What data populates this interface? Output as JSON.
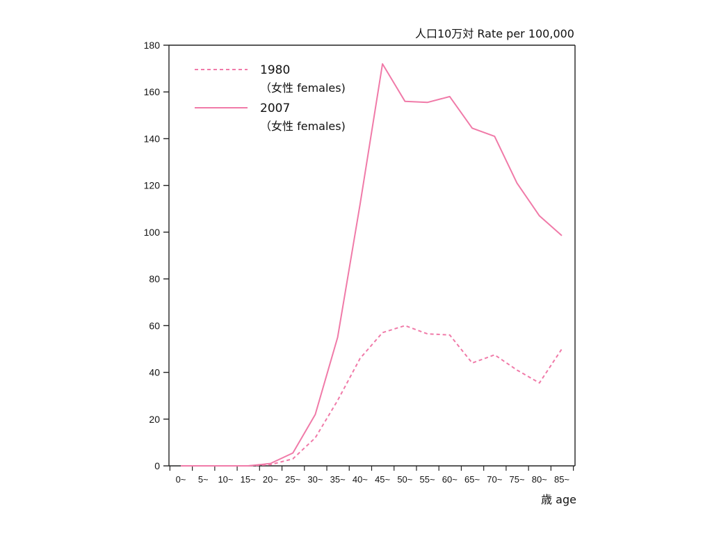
{
  "chart_data": {
    "type": "line",
    "y_unit_label": "人口10万対  Rate per 100,000",
    "x_unit_label": "歳 age",
    "ylim": [
      0,
      180
    ],
    "yticks": [
      0,
      20,
      40,
      60,
      80,
      100,
      120,
      140,
      160,
      180
    ],
    "categories": [
      "0~",
      "5~",
      "10~",
      "15~",
      "20~",
      "25~",
      "30~",
      "35~",
      "40~",
      "45~",
      "50~",
      "55~",
      "60~",
      "65~",
      "70~",
      "75~",
      "80~",
      "85~"
    ],
    "grid": false,
    "legend_position": "top-left",
    "series": [
      {
        "name": "1980",
        "sub": "（女性 females)",
        "style": "dashed",
        "color": "#f07aa8",
        "values": [
          0,
          0,
          0,
          0,
          0.5,
          3,
          12,
          28,
          46,
          57,
          60,
          56.5,
          56,
          44,
          47.5,
          41,
          35.5,
          50
        ]
      },
      {
        "name": "2007",
        "sub": "（女性 females)",
        "style": "solid",
        "color": "#f07aa8",
        "values": [
          0,
          0,
          0,
          0,
          1,
          5.5,
          22,
          55,
          112,
          172,
          156,
          155.5,
          158,
          144.5,
          141,
          121,
          107,
          98.5
        ]
      }
    ]
  }
}
